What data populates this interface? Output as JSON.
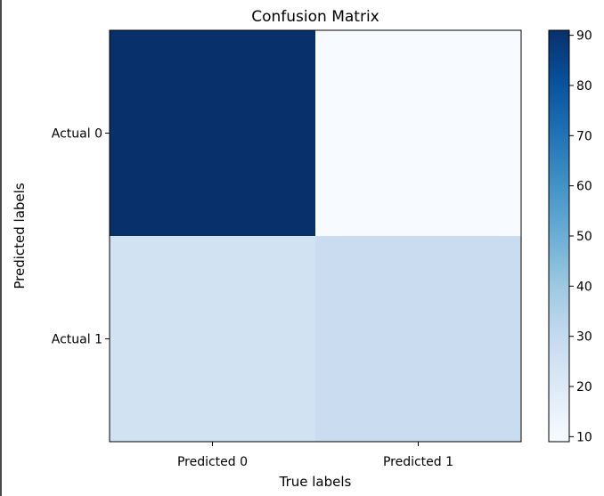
{
  "chart_data": {
    "type": "heatmap",
    "title": "Confusion Matrix",
    "xlabel": "True labels",
    "ylabel": "Predicted labels",
    "x_tick_labels": [
      "Predicted 0",
      "Predicted 1"
    ],
    "y_tick_labels": [
      "Actual 0",
      "Actual 1"
    ],
    "matrix": [
      [
        91,
        9
      ],
      [
        25,
        28
      ]
    ],
    "colormap": "Blues",
    "colorbar": {
      "range": [
        9,
        91
      ],
      "ticks": [
        10,
        20,
        30,
        40,
        50,
        60,
        70,
        80,
        90
      ]
    },
    "grid": false
  }
}
